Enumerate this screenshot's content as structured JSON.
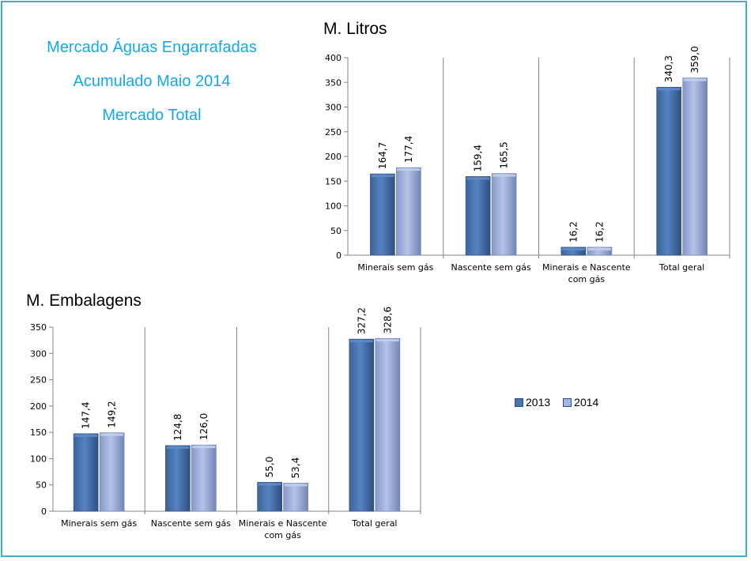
{
  "headings": [
    "Mercado Águas Engarrafadas",
    "Acumulado Maio 2014",
    "Mercado Total"
  ],
  "legend": [
    {
      "label": "2013",
      "color": "#4a74b0"
    },
    {
      "label": "2014",
      "color": "#a3b4de"
    }
  ],
  "chart_data": [
    {
      "type": "bar",
      "title": "M. Litros",
      "categories": [
        "Minerais sem gás",
        "Nascente sem gás",
        "Minerais e Nascente com gás",
        "Total geral"
      ],
      "series": [
        {
          "name": "2013",
          "values": [
            164.7,
            159.4,
            16.2,
            340.3
          ],
          "labels": [
            "164,7",
            "159,4",
            "16,2",
            "340,3"
          ]
        },
        {
          "name": "2014",
          "values": [
            177.4,
            165.5,
            16.2,
            359.0
          ],
          "labels": [
            "177,4",
            "165,5",
            "16,2",
            "359,0"
          ]
        }
      ],
      "ylim": [
        0,
        400
      ],
      "yticks": [
        0,
        50,
        100,
        150,
        200,
        250,
        300,
        350,
        400
      ],
      "legend": "right"
    },
    {
      "type": "bar",
      "title": "M. Embalagens",
      "categories": [
        "Minerais sem gás",
        "Nascente sem gás",
        "Minerais e Nascente com gás",
        "Total geral"
      ],
      "series": [
        {
          "name": "2013",
          "values": [
            147.4,
            124.8,
            55.0,
            327.2
          ],
          "labels": [
            "147,4",
            "124,8",
            "55,0",
            "327,2"
          ]
        },
        {
          "name": "2014",
          "values": [
            149.2,
            126.0,
            53.4,
            328.6
          ],
          "labels": [
            "149,2",
            "126,0",
            "53,4",
            "328,6"
          ]
        }
      ],
      "ylim": [
        0,
        350
      ],
      "yticks": [
        0,
        50,
        100,
        150,
        200,
        250,
        300,
        350
      ],
      "legend": "right"
    }
  ]
}
